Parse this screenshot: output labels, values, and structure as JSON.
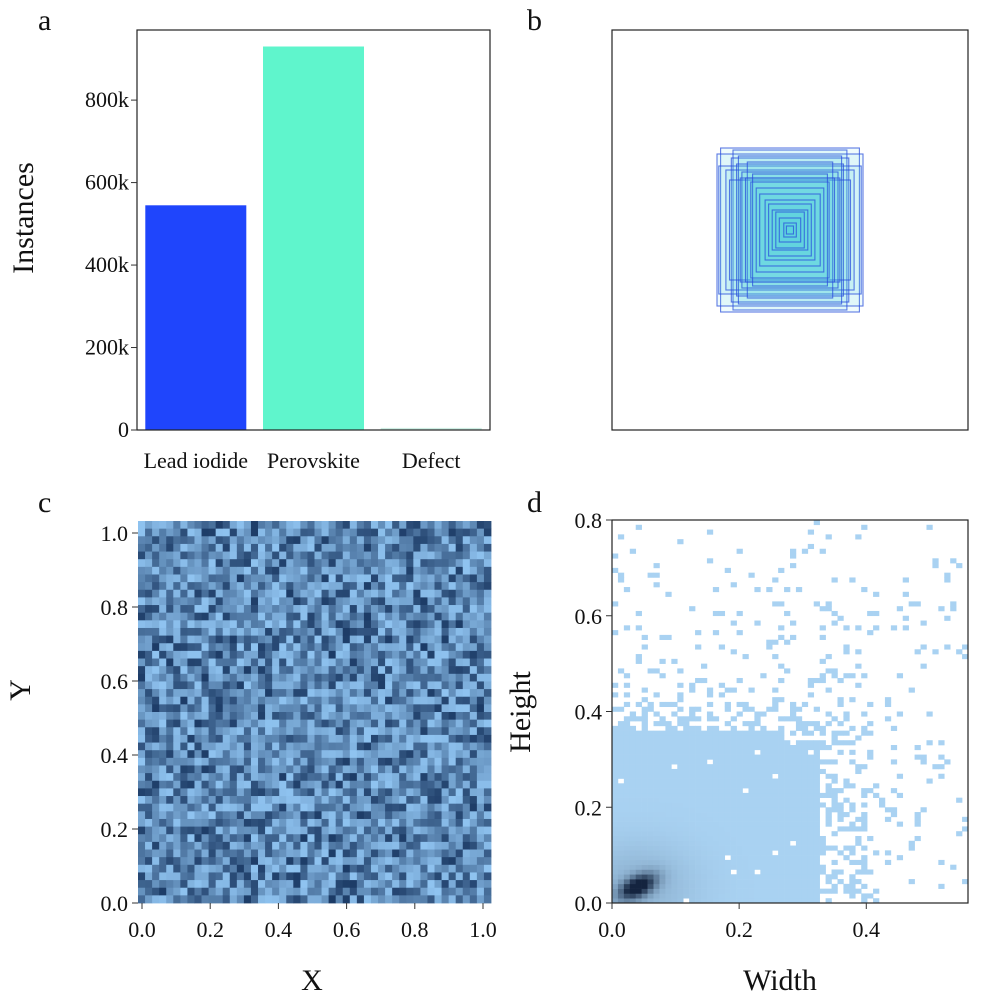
{
  "panels": [
    {
      "letter": "a"
    },
    {
      "letter": "b"
    },
    {
      "letter": "c"
    },
    {
      "letter": "d"
    }
  ],
  "colors": {
    "lead_iodide": "#1f45fc",
    "perovskite": "#5ff5cc",
    "defect": "#cfeee4",
    "box_stroke": "#2a4fdc",
    "box_fill": "#4fd6e0",
    "heat_light": "#a9d2f2",
    "heat_dark": "#14243f"
  },
  "chart_data": [
    {
      "type": "bar",
      "panel": "a",
      "categories": [
        "Lead iodide",
        "Perovskite",
        "Defect"
      ],
      "values": [
        545000,
        930000,
        5000
      ],
      "ylabel": "Instances",
      "xlabel": "",
      "ylim": [
        0,
        970000
      ],
      "yticks": [
        0,
        200000,
        400000,
        600000,
        800000
      ],
      "yticklabels": [
        "0",
        "200k",
        "400k",
        "600k",
        "800k"
      ],
      "grid": false
    },
    {
      "type": "scatter",
      "panel": "b",
      "description_of_marks": "overlaid bounding box outlines centered in normalized image frame",
      "center": [
        0.5,
        0.5
      ],
      "boxes_wh": [
        [
          0.41,
          0.38
        ],
        [
          0.39,
          0.41
        ],
        [
          0.33,
          0.36
        ],
        [
          0.3,
          0.33
        ],
        [
          0.27,
          0.29
        ],
        [
          0.36,
          0.3
        ],
        [
          0.29,
          0.37
        ],
        [
          0.25,
          0.26
        ],
        [
          0.22,
          0.24
        ],
        [
          0.19,
          0.21
        ],
        [
          0.17,
          0.18
        ],
        [
          0.14,
          0.15
        ],
        [
          0.12,
          0.13
        ],
        [
          0.1,
          0.1
        ],
        [
          0.08,
          0.09
        ],
        [
          0.06,
          0.06
        ],
        [
          0.035,
          0.035
        ],
        [
          0.02,
          0.02
        ],
        [
          0.32,
          0.4
        ],
        [
          0.4,
          0.32
        ],
        [
          0.24,
          0.34
        ],
        [
          0.34,
          0.25
        ],
        [
          0.28,
          0.26
        ],
        [
          0.21,
          0.28
        ]
      ],
      "xlim": [
        0,
        1
      ],
      "ylim": [
        0,
        1
      ],
      "grid": false
    },
    {
      "type": "heatmap",
      "panel": "c",
      "xlabel": "X",
      "ylabel": "Y",
      "xlim": [
        0,
        1.0
      ],
      "ylim": [
        0,
        1.0
      ],
      "xticks": [
        "0.0",
        "0.2",
        "0.4",
        "0.6",
        "0.8",
        "1.0"
      ],
      "yticks": [
        "0.0",
        "0.2",
        "0.4",
        "0.6",
        "0.8",
        "1.0"
      ],
      "bins": 50,
      "distribution": "approximately uniform",
      "grid": false
    },
    {
      "type": "heatmap",
      "panel": "d",
      "xlabel": "Width",
      "ylabel": "Height",
      "xlim": [
        0,
        0.56
      ],
      "ylim": [
        0,
        0.8
      ],
      "xticks": [
        "0.0",
        "0.2",
        "0.4"
      ],
      "yticks": [
        "0.0",
        "0.2",
        "0.4",
        "0.6",
        "0.8"
      ],
      "bins_x": 60,
      "bins_y": 80,
      "distribution": "dense near origin (peak about width 0.04, height 0.03), sparse toward large width and height",
      "grid": false
    }
  ]
}
